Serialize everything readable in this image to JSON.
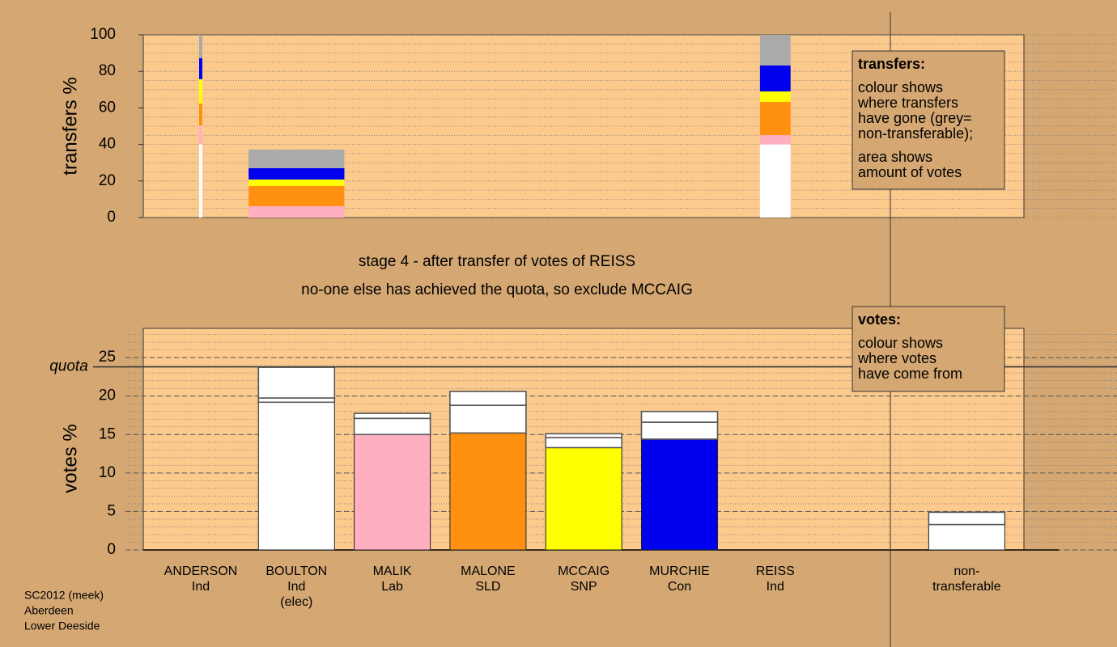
{
  "chart_data": [
    {
      "type": "bar",
      "stacked": true,
      "ylabel": "transfers %",
      "ylim": [
        0,
        100
      ],
      "yticks": [
        0,
        20,
        40,
        60,
        80,
        100
      ],
      "minor_grid_step": 5,
      "bar_widths": [
        0.034,
        1,
        null,
        null,
        null,
        null,
        0.32,
        null,
        null
      ],
      "series": [
        {
          "color": "#ffffff",
          "values": [
            40,
            0,
            null,
            null,
            null,
            null,
            40,
            null,
            null
          ]
        },
        {
          "color": "#ffb0c0",
          "values": [
            10.4,
            6.2,
            null,
            null,
            null,
            null,
            5.1,
            null,
            null
          ]
        },
        {
          "color": "#ff9010",
          "values": [
            12,
            11.1,
            null,
            null,
            null,
            null,
            18.2,
            null,
            null
          ]
        },
        {
          "color": "#ffff00",
          "values": [
            13.3,
            3.5,
            null,
            null,
            null,
            null,
            5.7,
            null,
            null
          ]
        },
        {
          "color": "#0000ee",
          "values": [
            11.5,
            6.2,
            null,
            null,
            null,
            null,
            14.2,
            null,
            null
          ]
        },
        {
          "color": "#aaaaaa",
          "values": [
            12.8,
            10.2,
            null,
            null,
            null,
            null,
            16.8,
            null,
            null
          ]
        }
      ],
      "note": {
        "title": "transfers:",
        "lines": [
          [
            "colour shows",
            "where transfers",
            "have gone (grey=",
            "non-transferable);"
          ],
          [
            "area shows",
            "amount of votes"
          ]
        ]
      }
    },
    {
      "type": "bar",
      "stacked": true,
      "ylabel": "votes %",
      "ylim": [
        0,
        28.8
      ],
      "yticks": [
        0,
        5,
        10,
        15,
        20,
        25
      ],
      "minor_grid_step": 1,
      "quota": {
        "label": "quota",
        "value": 23.8
      },
      "categories": [
        [
          "ANDERSON",
          "Ind"
        ],
        [
          "BOULTON",
          "Ind",
          "(elec)"
        ],
        [
          "MALIK",
          "Lab"
        ],
        [
          "MALONE",
          "SLD"
        ],
        [
          "MCCAIG",
          "SNP"
        ],
        [
          "MURCHIE",
          "Con"
        ],
        [
          "REISS",
          "Ind"
        ],
        null,
        [
          "non-",
          "transferable"
        ]
      ],
      "colors": [
        "#ffffff",
        "#ffffff",
        "#ffb0c0",
        "#ff9010",
        "#ffff00",
        "#0000ee",
        "#ffffff",
        null,
        "#ffffff"
      ],
      "stacks": [
        [
          0
        ],
        [
          19.2,
          0.55,
          4.0
        ],
        [
          15.0,
          2.1,
          0.65
        ],
        [
          15.2,
          3.6,
          1.8
        ],
        [
          13.3,
          1.3,
          0.5
        ],
        [
          14.4,
          2.2,
          1.4
        ],
        [
          0
        ],
        null,
        [
          3.3,
          1.6
        ]
      ],
      "note": {
        "title": "votes:",
        "lines": [
          [
            "colour shows",
            "where votes",
            "have come from"
          ]
        ]
      }
    }
  ],
  "captions": [
    "stage 4 - after transfer of votes of REISS",
    "no-one else has achieved the quota, so exclude MCCAIG"
  ],
  "footer": [
    "SC2012 (meek)",
    "Aberdeen",
    "Lower Deeside"
  ]
}
